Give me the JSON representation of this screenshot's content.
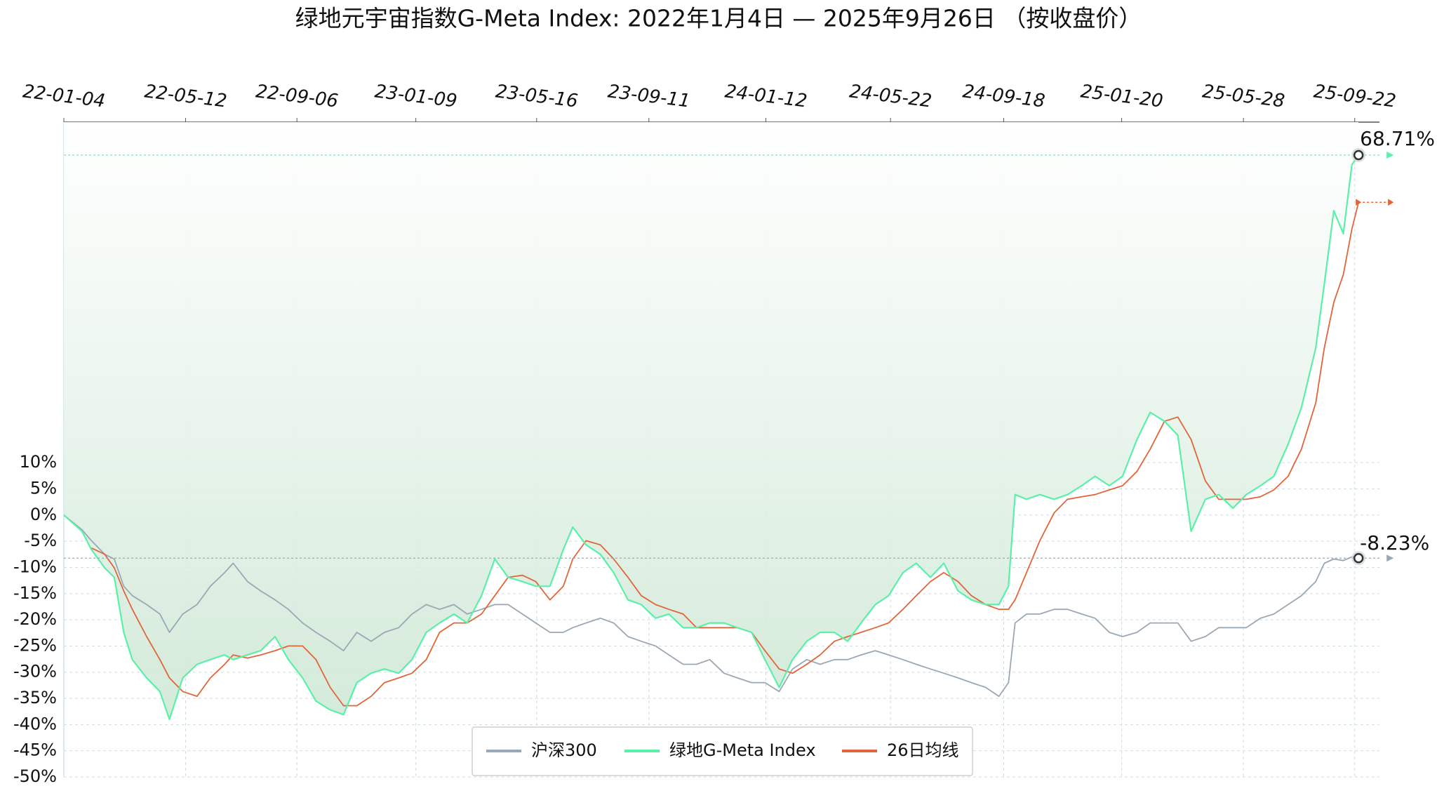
{
  "chart_data": {
    "type": "line",
    "title": "绿地元宇宙指数G-Meta Index:  2022年1月4日  —  2025年9月26日  （按收盘价）",
    "x": [
      "2022-01-04",
      "2022-01-23",
      "2022-02-02",
      "2022-02-16",
      "2022-02-26",
      "2022-03-08",
      "2022-03-17",
      "2022-04-01",
      "2022-04-15",
      "2022-04-25",
      "2022-05-09",
      "2022-05-24",
      "2022-06-07",
      "2022-06-22",
      "2022-07-01",
      "2022-07-16",
      "2022-07-30",
      "2022-08-14",
      "2022-08-28",
      "2022-09-12",
      "2022-09-26",
      "2022-10-11",
      "2022-10-25",
      "2022-11-08",
      "2022-11-23",
      "2022-12-07",
      "2022-12-22",
      "2023-01-05",
      "2023-01-20",
      "2023-02-03",
      "2023-02-18",
      "2023-03-04",
      "2023-03-19",
      "2023-04-02",
      "2023-04-16",
      "2023-05-01",
      "2023-05-15",
      "2023-05-30",
      "2023-06-13",
      "2023-06-23",
      "2023-07-07",
      "2023-07-22",
      "2023-08-05",
      "2023-08-20",
      "2023-09-03",
      "2023-09-18",
      "2023-10-02",
      "2023-10-17",
      "2023-10-31",
      "2023-11-14",
      "2023-11-29",
      "2023-12-13",
      "2023-12-28",
      "2024-01-11",
      "2024-01-26",
      "2024-02-09",
      "2024-02-24",
      "2024-03-09",
      "2024-03-24",
      "2024-04-07",
      "2024-04-21",
      "2024-05-06",
      "2024-05-20",
      "2024-06-04",
      "2024-06-18",
      "2024-07-03",
      "2024-07-17",
      "2024-08-01",
      "2024-08-15",
      "2024-08-30",
      "2024-09-13",
      "2024-09-23",
      "2024-09-30",
      "2024-10-12",
      "2024-10-26",
      "2024-11-10",
      "2024-11-24",
      "2024-12-09",
      "2024-12-23",
      "2025-01-07",
      "2025-01-21",
      "2025-02-05",
      "2025-02-19",
      "2025-03-06",
      "2025-03-20",
      "2025-04-03",
      "2025-04-18",
      "2025-05-02",
      "2025-05-17",
      "2025-05-31",
      "2025-06-15",
      "2025-06-29",
      "2025-07-14",
      "2025-07-28",
      "2025-08-12",
      "2025-08-21",
      "2025-08-31",
      "2025-09-10",
      "2025-09-19",
      "2025-09-26"
    ],
    "series": [
      {
        "name": "沪深300",
        "color": "#9aa8b5",
        "values": [
          0,
          -2.8,
          -4.9,
          -7.5,
          -8.4,
          -13.6,
          -15.4,
          -17.1,
          -18.9,
          -22.4,
          -18.9,
          -17.1,
          -13.6,
          -11.0,
          -9.2,
          -12.7,
          -14.5,
          -16.2,
          -18.0,
          -20.6,
          -22.4,
          -24.1,
          -25.9,
          -22.4,
          -24.1,
          -22.4,
          -21.5,
          -18.9,
          -17.1,
          -18.0,
          -17.1,
          -18.9,
          -18.0,
          -17.1,
          -17.1,
          -18.9,
          -20.6,
          -22.4,
          -22.4,
          -21.5,
          -20.6,
          -19.7,
          -20.6,
          -23.2,
          -24.1,
          -25.0,
          -26.7,
          -28.5,
          -28.5,
          -27.6,
          -30.2,
          -31.1,
          -32.0,
          -32.0,
          -33.7,
          -29.4,
          -27.6,
          -28.5,
          -27.6,
          -27.6,
          -26.7,
          -25.9,
          -26.7,
          -27.6,
          -28.5,
          -29.4,
          -30.2,
          -31.1,
          -32.0,
          -32.9,
          -34.6,
          -32.0,
          -20.6,
          -18.9,
          -18.9,
          -18.0,
          -18.0,
          -18.9,
          -19.7,
          -22.4,
          -23.2,
          -22.4,
          -20.6,
          -20.6,
          -20.6,
          -24.1,
          -23.2,
          -21.5,
          -21.5,
          -21.5,
          -19.7,
          -18.9,
          -17.1,
          -15.4,
          -12.7,
          -9.2,
          -8.4,
          -8.7,
          -8.0,
          -8.23
        ]
      },
      {
        "name": "绿地G-Meta Index",
        "color": "#5af0a8",
        "values": [
          0,
          -3.1,
          -6.6,
          -10.1,
          -11.9,
          -22.4,
          -27.6,
          -31.1,
          -33.7,
          -39.0,
          -31.1,
          -28.5,
          -27.6,
          -26.7,
          -27.6,
          -26.7,
          -25.9,
          -23.2,
          -27.6,
          -31.1,
          -35.5,
          -37.2,
          -38.1,
          -32.0,
          -30.2,
          -29.4,
          -30.2,
          -27.6,
          -22.4,
          -20.6,
          -18.9,
          -20.6,
          -15.4,
          -8.4,
          -11.9,
          -12.7,
          -13.6,
          -13.6,
          -6.6,
          -2.3,
          -5.7,
          -7.5,
          -11.0,
          -16.2,
          -17.1,
          -19.7,
          -18.9,
          -21.5,
          -21.5,
          -20.6,
          -20.6,
          -21.5,
          -22.4,
          -27.6,
          -32.9,
          -27.6,
          -24.1,
          -22.4,
          -22.4,
          -24.1,
          -20.6,
          -17.1,
          -15.4,
          -11.0,
          -9.2,
          -11.9,
          -9.2,
          -14.5,
          -16.2,
          -17.1,
          -17.1,
          -13.6,
          3.9,
          3.0,
          3.9,
          3.0,
          3.9,
          5.6,
          7.4,
          5.6,
          7.4,
          14.4,
          19.6,
          17.9,
          15.2,
          -3.1,
          3.0,
          3.9,
          1.3,
          3.9,
          5.6,
          7.4,
          13.5,
          20.5,
          31.9,
          44.1,
          58.1,
          53.7,
          66.9,
          68.71
        ]
      },
      {
        "name": "26日均线",
        "color": "#e0663a",
        "values": [
          null,
          null,
          -6.3,
          -7.5,
          -10.1,
          -14.5,
          -18.0,
          -23.2,
          -27.6,
          -31.1,
          -33.7,
          -34.6,
          -31.1,
          -28.5,
          -26.7,
          -27.3,
          -26.7,
          -25.9,
          -25.0,
          -25.0,
          -27.6,
          -32.9,
          -36.4,
          -36.4,
          -34.6,
          -32.0,
          -31.1,
          -30.2,
          -27.6,
          -22.4,
          -20.6,
          -20.6,
          -18.9,
          -15.4,
          -11.9,
          -11.5,
          -12.7,
          -16.2,
          -13.6,
          -8.4,
          -4.9,
          -5.7,
          -8.4,
          -11.9,
          -15.4,
          -17.1,
          -18.0,
          -18.9,
          -21.5,
          -21.5,
          -21.5,
          -21.5,
          -22.4,
          -25.9,
          -29.4,
          -30.2,
          -28.5,
          -26.7,
          -24.1,
          -23.2,
          -22.4,
          -21.5,
          -20.6,
          -18.0,
          -15.4,
          -12.7,
          -11.0,
          -12.7,
          -15.4,
          -17.1,
          -18.0,
          -18.0,
          -16.2,
          -11.0,
          -4.9,
          0.4,
          3.0,
          3.5,
          3.9,
          4.8,
          5.6,
          8.3,
          12.6,
          17.9,
          18.7,
          14.4,
          6.5,
          3.0,
          3.0,
          3.0,
          3.5,
          4.8,
          7.4,
          12.6,
          21.4,
          31.9,
          40.6,
          45.9,
          54.6,
          59.7
        ]
      }
    ],
    "xlim": [
      "2022-01-04",
      "2025-10-18"
    ],
    "xticks": [
      {
        "value": "2022-01-04",
        "label": "22-01-04"
      },
      {
        "value": "2022-05-12",
        "label": "22-05-12"
      },
      {
        "value": "2022-09-06",
        "label": "22-09-06"
      },
      {
        "value": "2023-01-09",
        "label": "23-01-09"
      },
      {
        "value": "2023-05-16",
        "label": "23-05-16"
      },
      {
        "value": "2023-09-11",
        "label": "23-09-11"
      },
      {
        "value": "2024-01-12",
        "label": "24-01-12"
      },
      {
        "value": "2024-05-22",
        "label": "24-05-22"
      },
      {
        "value": "2024-09-18",
        "label": "24-09-18"
      },
      {
        "value": "2025-01-20",
        "label": "25-01-20"
      },
      {
        "value": "2025-05-28",
        "label": "25-05-28"
      },
      {
        "value": "2025-09-22",
        "label": "25-09-22"
      }
    ],
    "ylim": [
      -50,
      75
    ],
    "yticks": [
      {
        "value": 10,
        "label": "10%"
      },
      {
        "value": 5,
        "label": "5%"
      },
      {
        "value": 0,
        "label": "0%"
      },
      {
        "value": -5,
        "label": "-5%"
      },
      {
        "value": -10,
        "label": "-10%"
      },
      {
        "value": -15,
        "label": "-15%"
      },
      {
        "value": -20,
        "label": "-20%"
      },
      {
        "value": -25,
        "label": "-25%"
      },
      {
        "value": -30,
        "label": "-30%"
      },
      {
        "value": -35,
        "label": "-35%"
      },
      {
        "value": -40,
        "label": "-40%"
      },
      {
        "value": -45,
        "label": "-45%"
      },
      {
        "value": -50,
        "label": "-50%"
      }
    ],
    "grid": true,
    "legend": "bottom",
    "annotations": [
      {
        "label": "68.71%",
        "value": 68.71,
        "color": "#5ee8a4"
      },
      {
        "label": "-8.23%",
        "value": -8.23,
        "color": "#2b3550"
      }
    ]
  }
}
